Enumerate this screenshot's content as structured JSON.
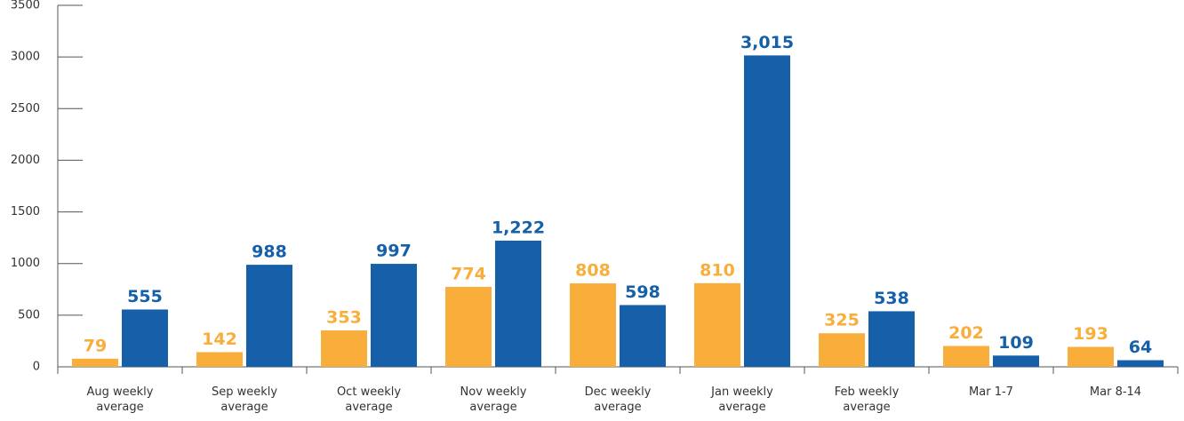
{
  "chart_data": {
    "type": "bar",
    "categories": [
      "Aug weekly average",
      "Sep weekly average",
      "Oct weekly average",
      "Nov weekly average",
      "Dec weekly average",
      "Jan weekly average",
      "Feb weekly average",
      "Mar 1-7",
      "Mar 8-14"
    ],
    "series": [
      {
        "color": "#f9ae3b",
        "values": [
          79,
          142,
          353,
          774,
          808,
          810,
          325,
          202,
          193
        ]
      },
      {
        "color": "#1560a8",
        "values": [
          555,
          988,
          997,
          1222,
          598,
          3015,
          538,
          109,
          64
        ],
        "value_labels": [
          "555",
          "988",
          "997",
          "1,222",
          "598",
          "3,015",
          "538",
          "109",
          "64"
        ]
      }
    ],
    "ylim": [
      0,
      3500
    ],
    "yticks": [
      0,
      500,
      1000,
      1500,
      2000,
      2500,
      3000,
      3500
    ]
  }
}
